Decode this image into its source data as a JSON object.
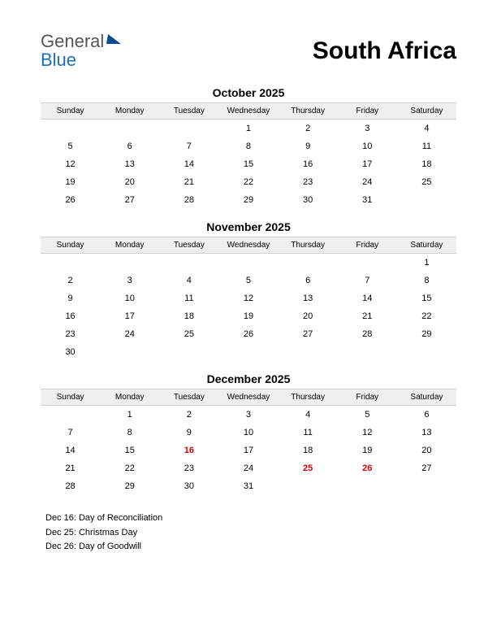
{
  "logo": {
    "word1": "General",
    "word2": "Blue"
  },
  "page_title": "South Africa",
  "day_headers": [
    "Sunday",
    "Monday",
    "Tuesday",
    "Wednesday",
    "Thursday",
    "Friday",
    "Saturday"
  ],
  "colors": {
    "header_bg": "#efefef",
    "border": "#d0d0d0",
    "holiday": "#d40000",
    "logo_gray": "#555555",
    "logo_blue": "#1b6fb8",
    "logo_mark": "#0a4d8c"
  },
  "months": [
    {
      "title": "October 2025",
      "weeks": [
        [
          "",
          "",
          "",
          "1",
          "2",
          "3",
          "4"
        ],
        [
          "5",
          "6",
          "7",
          "8",
          "9",
          "10",
          "11"
        ],
        [
          "12",
          "13",
          "14",
          "15",
          "16",
          "17",
          "18"
        ],
        [
          "19",
          "20",
          "21",
          "22",
          "23",
          "24",
          "25"
        ],
        [
          "26",
          "27",
          "28",
          "29",
          "30",
          "31",
          ""
        ]
      ],
      "holidays": []
    },
    {
      "title": "November 2025",
      "weeks": [
        [
          "",
          "",
          "",
          "",
          "",
          "",
          "1"
        ],
        [
          "2",
          "3",
          "4",
          "5",
          "6",
          "7",
          "8"
        ],
        [
          "9",
          "10",
          "11",
          "12",
          "13",
          "14",
          "15"
        ],
        [
          "16",
          "17",
          "18",
          "19",
          "20",
          "21",
          "22"
        ],
        [
          "23",
          "24",
          "25",
          "26",
          "27",
          "28",
          "29"
        ],
        [
          "30",
          "",
          "",
          "",
          "",
          "",
          ""
        ]
      ],
      "holidays": []
    },
    {
      "title": "December 2025",
      "weeks": [
        [
          "",
          "1",
          "2",
          "3",
          "4",
          "5",
          "6"
        ],
        [
          "7",
          "8",
          "9",
          "10",
          "11",
          "12",
          "13"
        ],
        [
          "14",
          "15",
          "16",
          "17",
          "18",
          "19",
          "20"
        ],
        [
          "21",
          "22",
          "23",
          "24",
          "25",
          "26",
          "27"
        ],
        [
          "28",
          "29",
          "30",
          "31",
          "",
          "",
          ""
        ]
      ],
      "holidays": [
        "16",
        "25",
        "26"
      ]
    }
  ],
  "holiday_list": [
    "Dec 16: Day of Reconciliation",
    "Dec 25: Christmas Day",
    "Dec 26: Day of Goodwill"
  ]
}
